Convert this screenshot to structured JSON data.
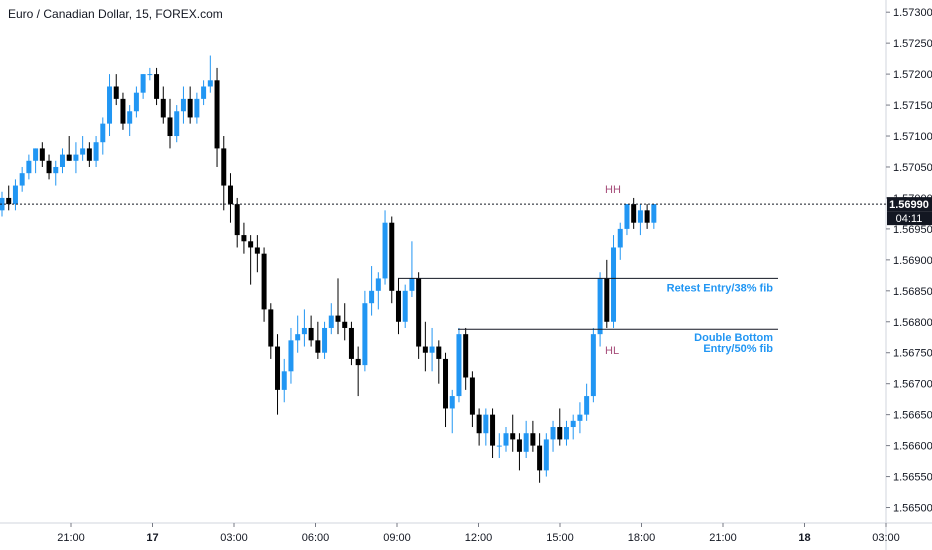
{
  "chart_data": {
    "type": "candlestick",
    "title": "Euro / Canadian Dollar, 15, FOREX.com",
    "ylim": [
      1.5647,
      1.5731
    ],
    "y_ticks": [
      "1.57300",
      "1.57250",
      "1.57200",
      "1.57150",
      "1.57100",
      "1.57050",
      "1.57000",
      "1.56950",
      "1.56900",
      "1.56850",
      "1.56800",
      "1.56750",
      "1.56700",
      "1.56650",
      "1.56600",
      "1.56550",
      "1.56500"
    ],
    "x_ticks": [
      "21:00",
      "17",
      "03:00",
      "06:00",
      "09:00",
      "12:00",
      "15:00",
      "18:00",
      "21:00",
      "18",
      "03:00"
    ],
    "last_price": "1.56990",
    "countdown": "04:11",
    "colors": {
      "up": "#2196f3",
      "down": "#000000"
    },
    "annotations": [
      {
        "text": "HH",
        "type": "point-label"
      },
      {
        "text": "HL",
        "type": "point-label"
      },
      {
        "text": "Retest Entry/38% fib",
        "type": "level-label"
      },
      {
        "text": "Double Bottom",
        "type": "level-label"
      },
      {
        "text": "Entry/50% fib",
        "type": "level-label"
      }
    ],
    "levels": [
      {
        "price": 1.5687,
        "label": "Retest Entry/38% fib"
      },
      {
        "price": 1.56788,
        "label": "Double Bottom Entry/50% fib"
      }
    ],
    "candles": [
      [
        1.5698,
        1.5701,
        1.5697,
        1.57
      ],
      [
        1.57,
        1.5702,
        1.5698,
        1.5699
      ],
      [
        1.5699,
        1.5703,
        1.5698,
        1.5702
      ],
      [
        1.5702,
        1.5705,
        1.5701,
        1.5704
      ],
      [
        1.5704,
        1.5707,
        1.5703,
        1.5706
      ],
      [
        1.5706,
        1.5708,
        1.5704,
        1.5708
      ],
      [
        1.5708,
        1.5709,
        1.5705,
        1.5706
      ],
      [
        1.5706,
        1.5707,
        1.5703,
        1.5704
      ],
      [
        1.5704,
        1.5706,
        1.5702,
        1.5705
      ],
      [
        1.5705,
        1.5708,
        1.5704,
        1.5707
      ],
      [
        1.5707,
        1.571,
        1.5706,
        1.5706
      ],
      [
        1.5706,
        1.5709,
        1.5704,
        1.5707
      ],
      [
        1.5707,
        1.571,
        1.5706,
        1.5708
      ],
      [
        1.5708,
        1.5709,
        1.5705,
        1.5706
      ],
      [
        1.5706,
        1.571,
        1.5705,
        1.5709
      ],
      [
        1.5709,
        1.5713,
        1.5707,
        1.5712
      ],
      [
        1.5712,
        1.572,
        1.571,
        1.5718
      ],
      [
        1.5718,
        1.572,
        1.5715,
        1.5716
      ],
      [
        1.5716,
        1.5717,
        1.5711,
        1.5712
      ],
      [
        1.5712,
        1.5715,
        1.571,
        1.5714
      ],
      [
        1.5714,
        1.5718,
        1.5713,
        1.5717
      ],
      [
        1.5717,
        1.572,
        1.5716,
        1.572
      ],
      [
        1.572,
        1.5721,
        1.5719,
        1.572
      ],
      [
        1.572,
        1.5721,
        1.5715,
        1.5716
      ],
      [
        1.5716,
        1.5718,
        1.5712,
        1.5713
      ],
      [
        1.5713,
        1.5716,
        1.5708,
        1.571
      ],
      [
        1.571,
        1.5715,
        1.5709,
        1.5714
      ],
      [
        1.5714,
        1.5718,
        1.5712,
        1.5716
      ],
      [
        1.5716,
        1.5718,
        1.5712,
        1.5713
      ],
      [
        1.5713,
        1.5717,
        1.5712,
        1.5716
      ],
      [
        1.5716,
        1.5719,
        1.5715,
        1.5718
      ],
      [
        1.5718,
        1.5723,
        1.5717,
        1.5719
      ],
      [
        1.5719,
        1.5721,
        1.5705,
        1.5708
      ],
      [
        1.5708,
        1.571,
        1.5698,
        1.5702
      ],
      [
        1.5702,
        1.5704,
        1.5696,
        1.5699
      ],
      [
        1.5699,
        1.57,
        1.5692,
        1.5694
      ],
      [
        1.5694,
        1.5696,
        1.5691,
        1.5693
      ],
      [
        1.5693,
        1.5694,
        1.5686,
        1.5692
      ],
      [
        1.5692,
        1.5694,
        1.5688,
        1.5691
      ],
      [
        1.5691,
        1.5692,
        1.568,
        1.5682
      ],
      [
        1.5682,
        1.5683,
        1.5674,
        1.5676
      ],
      [
        1.5676,
        1.5678,
        1.5665,
        1.5669
      ],
      [
        1.5669,
        1.5674,
        1.5667,
        1.5672
      ],
      [
        1.5672,
        1.5679,
        1.567,
        1.5677
      ],
      [
        1.5677,
        1.5681,
        1.5675,
        1.5678
      ],
      [
        1.5678,
        1.5682,
        1.5676,
        1.5679
      ],
      [
        1.5679,
        1.5681,
        1.5676,
        1.5677
      ],
      [
        1.5677,
        1.568,
        1.5674,
        1.5675
      ],
      [
        1.5675,
        1.568,
        1.5674,
        1.5679
      ],
      [
        1.5679,
        1.5683,
        1.5678,
        1.5681
      ],
      [
        1.5681,
        1.5687,
        1.5678,
        1.568
      ],
      [
        1.568,
        1.5683,
        1.5677,
        1.5679
      ],
      [
        1.5679,
        1.568,
        1.5673,
        1.5674
      ],
      [
        1.5674,
        1.5676,
        1.5668,
        1.5673
      ],
      [
        1.5673,
        1.5685,
        1.5672,
        1.5683
      ],
      [
        1.5683,
        1.5689,
        1.5681,
        1.5685
      ],
      [
        1.5685,
        1.5688,
        1.5682,
        1.5687
      ],
      [
        1.5687,
        1.5698,
        1.5686,
        1.5696
      ],
      [
        1.5696,
        1.5697,
        1.5683,
        1.5685
      ],
      [
        1.5685,
        1.5687,
        1.5678,
        1.568
      ],
      [
        1.568,
        1.5686,
        1.5679,
        1.5685
      ],
      [
        1.5685,
        1.5693,
        1.5684,
        1.5687
      ],
      [
        1.5687,
        1.5688,
        1.5674,
        1.5676
      ],
      [
        1.5676,
        1.568,
        1.5672,
        1.5675
      ],
      [
        1.5675,
        1.5679,
        1.5672,
        1.5676
      ],
      [
        1.5676,
        1.5677,
        1.567,
        1.5674
      ],
      [
        1.5674,
        1.5675,
        1.5663,
        1.5666
      ],
      [
        1.5666,
        1.5669,
        1.5662,
        1.5668
      ],
      [
        1.5668,
        1.5679,
        1.5667,
        1.5678
      ],
      [
        1.5678,
        1.5679,
        1.5669,
        1.5671
      ],
      [
        1.5671,
        1.5672,
        1.5663,
        1.5665
      ],
      [
        1.5665,
        1.5666,
        1.566,
        1.5662
      ],
      [
        1.5662,
        1.5666,
        1.566,
        1.5665
      ],
      [
        1.5665,
        1.5666,
        1.5658,
        1.566
      ],
      [
        1.566,
        1.5662,
        1.5658,
        1.566
      ],
      [
        1.566,
        1.5663,
        1.5659,
        1.5662
      ],
      [
        1.5662,
        1.5665,
        1.5659,
        1.5661
      ],
      [
        1.5661,
        1.5662,
        1.5656,
        1.5659
      ],
      [
        1.5659,
        1.5664,
        1.5658,
        1.5662
      ],
      [
        1.5662,
        1.5664,
        1.5659,
        1.566
      ],
      [
        1.566,
        1.5662,
        1.5654,
        1.5656
      ],
      [
        1.5656,
        1.5662,
        1.5655,
        1.5661
      ],
      [
        1.5661,
        1.5664,
        1.5659,
        1.5663
      ],
      [
        1.5663,
        1.5666,
        1.566,
        1.5661
      ],
      [
        1.5661,
        1.5664,
        1.566,
        1.5663
      ],
      [
        1.5663,
        1.5665,
        1.5661,
        1.5664
      ],
      [
        1.5664,
        1.5667,
        1.5662,
        1.5665
      ],
      [
        1.5665,
        1.567,
        1.5664,
        1.5668
      ],
      [
        1.5668,
        1.5679,
        1.5667,
        1.5678
      ],
      [
        1.5678,
        1.5688,
        1.5676,
        1.5687
      ],
      [
        1.5687,
        1.569,
        1.5679,
        1.568
      ],
      [
        1.568,
        1.5694,
        1.5679,
        1.5692
      ],
      [
        1.5692,
        1.5696,
        1.569,
        1.5695
      ],
      [
        1.5695,
        1.5699,
        1.5694,
        1.5699
      ],
      [
        1.5699,
        1.57,
        1.5695,
        1.5696
      ],
      [
        1.5696,
        1.5699,
        1.5694,
        1.5698
      ],
      [
        1.5698,
        1.5699,
        1.5695,
        1.5696
      ],
      [
        1.5696,
        1.5699,
        1.5695,
        1.5699
      ]
    ]
  }
}
